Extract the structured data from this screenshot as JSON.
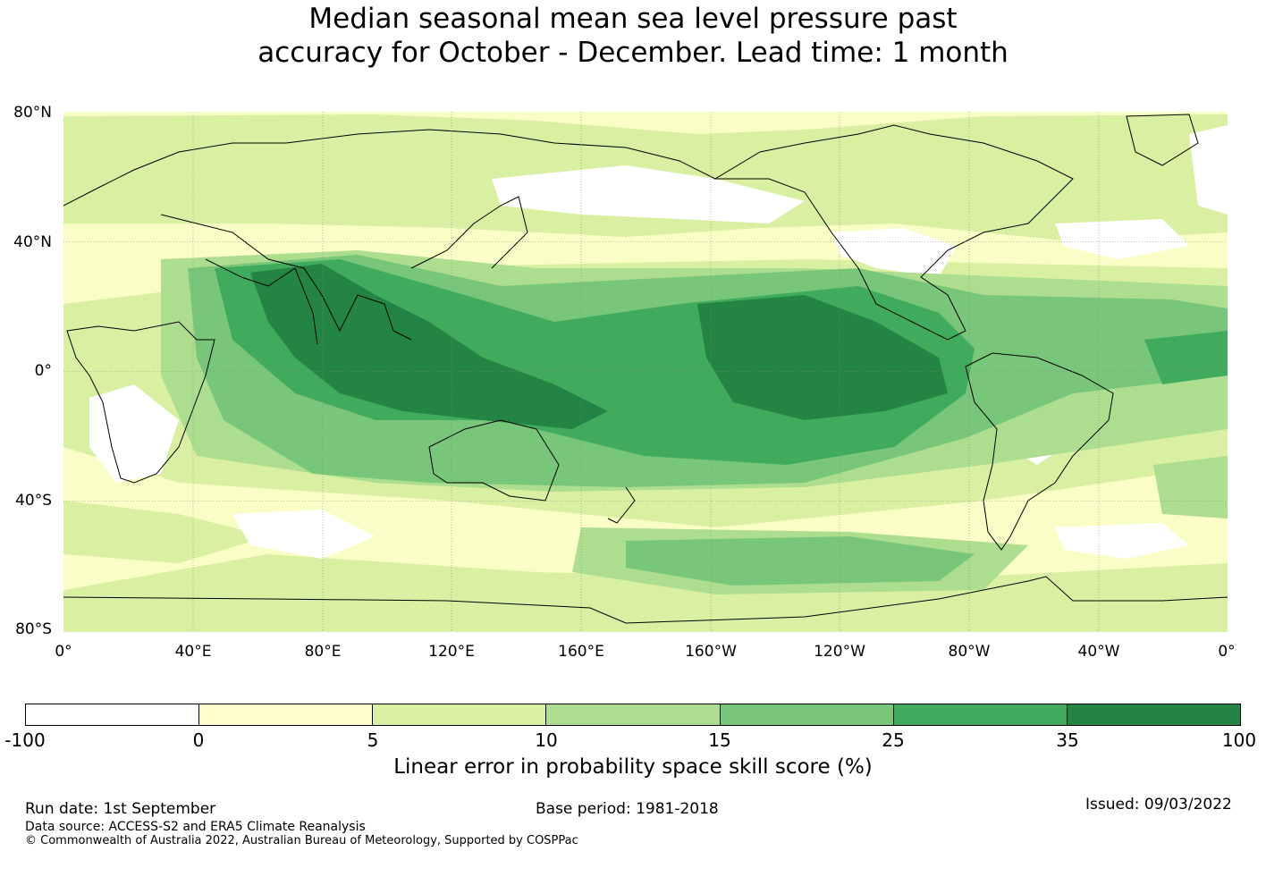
{
  "title": {
    "line1": "Median seasonal mean sea level pressure past",
    "line2": "accuracy for October - December. Lead time: 1 month"
  },
  "map": {
    "latitude_labels": [
      "80°N",
      "40°N",
      "0°",
      "40°S",
      "80°S"
    ],
    "longitude_labels": [
      "0°",
      "40°E",
      "80°E",
      "120°E",
      "160°E",
      "160°W",
      "120°W",
      "80°W",
      "40°W",
      "0°"
    ],
    "grid_lines": true,
    "background_color": "#fefec8"
  },
  "colorbar": {
    "ticks": [
      "-100",
      "0",
      "5",
      "10",
      "15",
      "25",
      "35",
      "100"
    ],
    "colors": [
      "#ffffff",
      "#ffffcc",
      "#d9f0a3",
      "#addd8e",
      "#78c679",
      "#41ab5d",
      "#238443"
    ],
    "label": "Linear error in probability space skill score (%)"
  },
  "footer": {
    "run_date": "Run date: 1st September",
    "base_period": "Base period: 1981-2018",
    "issued": "Issued: 09/03/2022",
    "data_source": "Data source: ACCESS-S2 and ERA5 Climate Reanalysis",
    "copyright": "© Commonwealth of Australia 2022, Australian Bureau of Meteorology, Supported by COSPPac"
  }
}
